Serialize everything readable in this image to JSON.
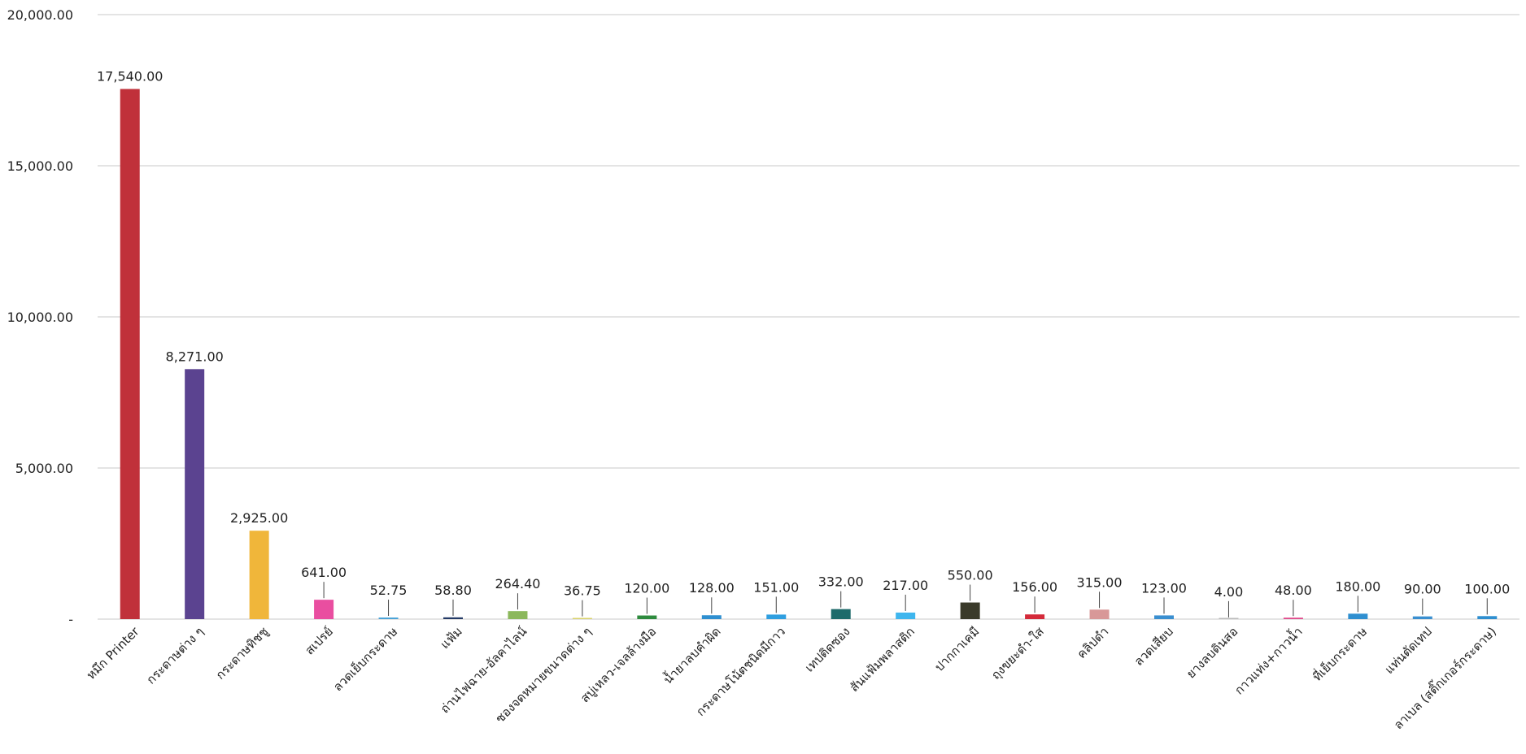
{
  "chart_data": {
    "type": "bar",
    "categories": [
      "หมึก Printer",
      "กระดาษต่าง ๆ",
      "กระดาษทิชชู",
      "สเปรย์",
      "ลวดเย็บกระดาษ",
      "แฟ้ม",
      "ถ่านไฟฉาย-อัลคาไลน์",
      "ซองจดหมายขนาดต่าง ๆ",
      "สบู่เหลว-เจลล้างมือ",
      "น้ำยาลบคำผิด",
      "กระดาษโน้ตชนิดมีกาว",
      "เทปติดซอง",
      "สันแฟ้มพลาสติก",
      "ปากกาเคมี",
      "ถุงขยะดำ-ใส",
      "คลิปดำ",
      "ลวดเสียบ",
      "ยางลบดินสอ",
      "กาวแท่ง+กาวน้ำ",
      "ที่เย็บกระดาษ",
      "แท่นตัดเทป",
      "ลาเบล (สติ๊กเกอร์กระดาษ)"
    ],
    "values": [
      17540,
      8271,
      2925,
      641,
      52.75,
      58.8,
      264.4,
      36.75,
      120,
      128,
      151,
      332,
      217,
      550,
      156,
      315,
      123,
      4,
      48,
      180,
      90,
      100
    ],
    "data_labels": [
      "17,540.00",
      "8,271.00",
      "2,925.00",
      "641.00",
      "52.75",
      "58.80",
      "264.40",
      "36.75",
      "120.00",
      "128.00",
      "151.00",
      "332.00",
      "217.00",
      "550.00",
      "156.00",
      "315.00",
      "123.00",
      "4.00",
      "48.00",
      "180.00",
      "90.00",
      "100.00"
    ],
    "colors": [
      "#c0313a",
      "#5b4390",
      "#f0b63a",
      "#e94ea0",
      "#4aa3d8",
      "#233a66",
      "#8cb85c",
      "#d9d26a",
      "#2e8b3e",
      "#2f8fd0",
      "#2f9fe0",
      "#1e6b6b",
      "#3fb6ee",
      "#3a3a2a",
      "#d42a3a",
      "#d89898",
      "#3a8fd0",
      "#bbbbbb",
      "#e04a8a",
      "#2f8fd0",
      "#3a8fd0",
      "#2f8fd0"
    ],
    "ylim": [
      0,
      20000
    ],
    "y_ticks": [
      0,
      5000,
      10000,
      15000,
      20000
    ],
    "y_tick_labels": [
      "-",
      "5,000.00",
      "10,000.00",
      "15,000.00",
      "20,000.00"
    ],
    "grid": true,
    "title": "",
    "xlabel": "",
    "ylabel": ""
  }
}
